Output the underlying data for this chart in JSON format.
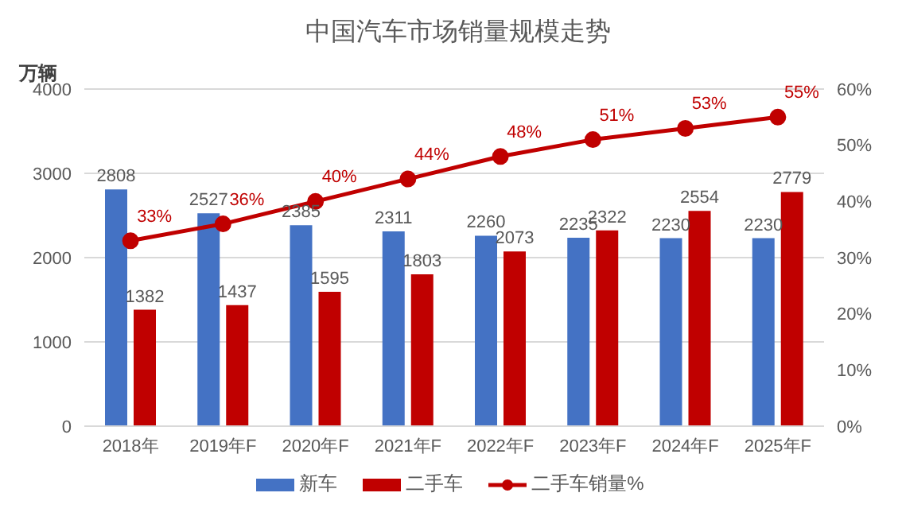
{
  "chart_data": {
    "type": "bar",
    "title": "中国汽车市场销量规模走势",
    "ylabel": "万辆",
    "categories": [
      "2018年",
      "2019年F",
      "2020年F",
      "2021年F",
      "2022年F",
      "2023年F",
      "2024年F",
      "2025年F"
    ],
    "series": [
      {
        "name": "新车",
        "color": "#4472c4",
        "values": [
          2808,
          2527,
          2385,
          2311,
          2260,
          2235,
          2230,
          2230
        ]
      },
      {
        "name": "二手车",
        "color": "#c00000",
        "values": [
          1382,
          1437,
          1595,
          1803,
          2073,
          2322,
          2554,
          2779
        ]
      },
      {
        "name": "二手车销量%",
        "type": "line",
        "axis": "y2",
        "color": "#c00000",
        "values": [
          33,
          36,
          40,
          44,
          48,
          51,
          53,
          55
        ],
        "value_labels": [
          "33%",
          "36%",
          "40%",
          "44%",
          "48%",
          "51%",
          "53%",
          "55%"
        ]
      }
    ],
    "ylim": [
      0,
      4000
    ],
    "yticks": [
      0,
      1000,
      2000,
      3000,
      4000
    ],
    "y2lim": [
      0,
      60
    ],
    "y2ticks": [
      {
        "value": 0,
        "label": "0%"
      },
      {
        "value": 10,
        "label": "10%"
      },
      {
        "value": 20,
        "label": "20%"
      },
      {
        "value": 30,
        "label": "30%"
      },
      {
        "value": 40,
        "label": "40%"
      },
      {
        "value": 50,
        "label": "50%"
      },
      {
        "value": 60,
        "label": "60%"
      }
    ],
    "grid": "y",
    "legend": "bottom",
    "marker": "circle",
    "data_labels": true
  }
}
